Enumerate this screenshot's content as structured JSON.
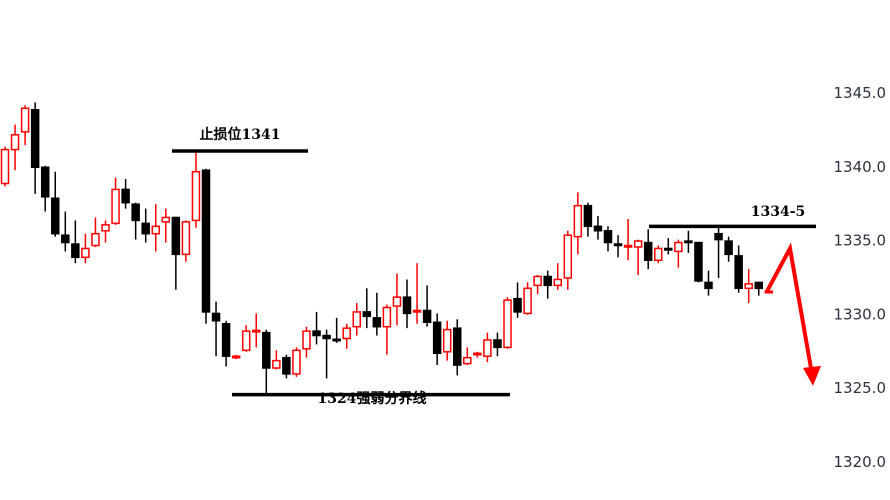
{
  "chart_data": {
    "type": "candlestick",
    "title": "",
    "xlabel": "",
    "ylabel": "",
    "ylim": [
      1319.8,
      1348.6
    ],
    "y_ticks": [
      "1345.0",
      "1340.0",
      "1335.0",
      "1330.0",
      "1325.0",
      "1320.0"
    ],
    "y_tick_values": [
      1345,
      1340,
      1335,
      1330,
      1325,
      1320
    ],
    "grid": false,
    "colors": {
      "up": "#ff0000",
      "down": "#000000",
      "arrow": "#ff0000",
      "line": "#000000",
      "axis_text": "#2b3340"
    },
    "candles": [
      [
        1338.8,
        1341.3,
        1338.6,
        1341.1
      ],
      [
        1341.1,
        1342.8,
        1339.7,
        1342.1
      ],
      [
        1342.3,
        1344.1,
        1341.4,
        1343.9
      ],
      [
        1343.8,
        1344.3,
        1338.1,
        1339.9
      ],
      [
        1339.9,
        1340.0,
        1336.9,
        1337.9
      ],
      [
        1337.8,
        1339.6,
        1335.2,
        1335.4
      ],
      [
        1335.3,
        1336.9,
        1334.2,
        1334.8
      ],
      [
        1334.7,
        1336.3,
        1333.4,
        1333.8
      ],
      [
        1333.8,
        1335.4,
        1333.4,
        1334.4
      ],
      [
        1334.6,
        1336.5,
        1334.5,
        1335.4
      ],
      [
        1335.6,
        1336.3,
        1334.8,
        1336.0
      ],
      [
        1336.1,
        1339.2,
        1336.0,
        1338.4
      ],
      [
        1338.4,
        1339.1,
        1337.1,
        1337.5
      ],
      [
        1337.4,
        1337.5,
        1335.0,
        1336.3
      ],
      [
        1336.1,
        1337.1,
        1334.8,
        1335.4
      ],
      [
        1335.4,
        1337.4,
        1334.2,
        1335.9
      ],
      [
        1336.2,
        1337.1,
        1334.8,
        1336.5
      ],
      [
        1336.5,
        1336.5,
        1331.6,
        1334.0
      ],
      [
        1334.0,
        1336.3,
        1333.5,
        1336.2
      ],
      [
        1336.3,
        1340.9,
        1335.8,
        1339.6
      ],
      [
        1339.7,
        1339.8,
        1329.3,
        1330.1
      ],
      [
        1330.0,
        1330.8,
        1327.1,
        1329.5
      ],
      [
        1329.3,
        1329.5,
        1326.4,
        1327.1
      ],
      [
        1327.0,
        1327.2,
        1326.9,
        1327.1
      ],
      [
        1327.5,
        1329.2,
        1327.4,
        1328.8
      ],
      [
        1328.8,
        1330.0,
        1327.7,
        1328.85
      ],
      [
        1328.7,
        1328.9,
        1324.6,
        1326.3
      ],
      [
        1326.3,
        1327.5,
        1326.2,
        1326.8
      ],
      [
        1327.0,
        1327.2,
        1325.6,
        1325.9
      ],
      [
        1325.9,
        1327.7,
        1325.7,
        1327.5
      ],
      [
        1327.6,
        1329.1,
        1327.0,
        1328.8
      ],
      [
        1328.8,
        1330.1,
        1327.9,
        1328.5
      ],
      [
        1328.5,
        1328.9,
        1325.6,
        1328.3
      ],
      [
        1328.25,
        1329.7,
        1328.0,
        1328.2
      ],
      [
        1328.3,
        1329.3,
        1327.6,
        1329.0
      ],
      [
        1329.1,
        1330.7,
        1328.5,
        1330.1
      ],
      [
        1330.1,
        1331.7,
        1329.0,
        1329.8
      ],
      [
        1329.7,
        1331.4,
        1328.5,
        1329.1
      ],
      [
        1329.1,
        1330.6,
        1327.2,
        1330.4
      ],
      [
        1330.5,
        1332.7,
        1329.2,
        1331.1
      ],
      [
        1331.1,
        1332.3,
        1329.0,
        1330.0
      ],
      [
        1330.1,
        1333.4,
        1329.3,
        1330.2
      ],
      [
        1330.2,
        1331.9,
        1329.1,
        1329.4
      ],
      [
        1329.4,
        1330.0,
        1326.5,
        1327.3
      ],
      [
        1327.4,
        1329.5,
        1326.8,
        1328.9
      ],
      [
        1329.0,
        1329.6,
        1325.8,
        1326.5
      ],
      [
        1326.6,
        1327.7,
        1326.5,
        1327.0
      ],
      [
        1327.2,
        1327.4,
        1327.0,
        1327.3
      ],
      [
        1327.1,
        1328.7,
        1326.7,
        1328.2
      ],
      [
        1328.2,
        1328.7,
        1327.1,
        1327.7
      ],
      [
        1327.7,
        1331.1,
        1327.6,
        1330.9
      ],
      [
        1331.0,
        1332.1,
        1329.7,
        1330.1
      ],
      [
        1330.0,
        1332.1,
        1329.9,
        1331.7
      ],
      [
        1331.9,
        1332.6,
        1331.3,
        1332.5
      ],
      [
        1332.5,
        1332.9,
        1331.0,
        1331.9
      ],
      [
        1331.9,
        1333.4,
        1331.6,
        1332.3
      ],
      [
        1332.4,
        1335.6,
        1331.6,
        1335.3
      ],
      [
        1335.2,
        1338.2,
        1334.0,
        1337.3
      ],
      [
        1337.3,
        1337.5,
        1335.2,
        1335.9
      ],
      [
        1335.9,
        1336.6,
        1335.0,
        1335.6
      ],
      [
        1335.6,
        1335.9,
        1334.2,
        1334.8
      ],
      [
        1334.7,
        1335.3,
        1333.8,
        1334.6
      ],
      [
        1334.5,
        1336.4,
        1333.6,
        1334.6
      ],
      [
        1334.5,
        1335.0,
        1332.6,
        1334.9
      ],
      [
        1334.8,
        1335.7,
        1333.0,
        1333.6
      ],
      [
        1333.6,
        1334.6,
        1333.4,
        1334.4
      ],
      [
        1334.4,
        1335.1,
        1334.0,
        1334.3
      ],
      [
        1334.2,
        1335.0,
        1333.1,
        1334.8
      ],
      [
        1334.9,
        1335.6,
        1334.1,
        1334.8
      ],
      [
        1334.8,
        1334.8,
        1332.1,
        1332.2
      ],
      [
        1332.1,
        1332.9,
        1331.2,
        1331.7
      ],
      [
        1335.4,
        1335.8,
        1332.4,
        1335.0
      ],
      [
        1334.9,
        1335.2,
        1333.5,
        1334.0
      ],
      [
        1333.9,
        1334.6,
        1331.4,
        1331.7
      ],
      [
        1331.7,
        1333.0,
        1330.7,
        1332.0
      ],
      [
        1332.1,
        1332.1,
        1331.2,
        1331.7
      ],
      [
        1331.5,
        1331.5,
        1331.5,
        1331.5
      ]
    ],
    "candle_format": [
      "open",
      "high",
      "low",
      "close"
    ],
    "annotations": {
      "stop_loss": {
        "label": "止损位1341",
        "price": 1341.0
      },
      "support": {
        "label": "1324强弱分界线",
        "price": 1324.5
      },
      "resistance": {
        "label": "1334-5",
        "price": 1335.9
      },
      "forecast_arrow": {
        "prices": [
          1331.5,
          1334.4,
          1325.9
        ],
        "direction": "down"
      }
    }
  }
}
